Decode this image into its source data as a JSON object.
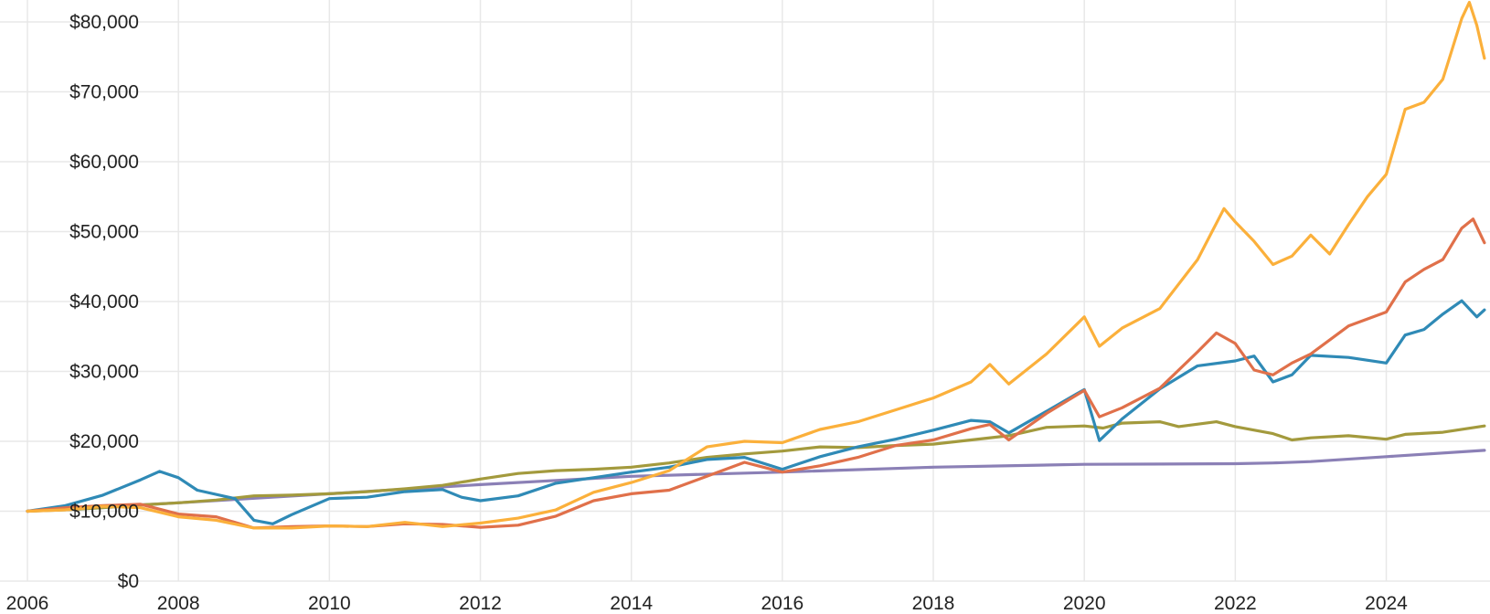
{
  "chart_data": {
    "type": "line",
    "title": "",
    "xlabel": "",
    "ylabel": "",
    "xlim": [
      2006.0,
      2025.35
    ],
    "ylim": [
      0,
      80000
    ],
    "grid": true,
    "x_ticks": [
      2006,
      2008,
      2010,
      2012,
      2014,
      2016,
      2018,
      2020,
      2022,
      2024
    ],
    "x_tick_labels": [
      "2006",
      "2008",
      "2010",
      "2012",
      "2014",
      "2016",
      "2018",
      "2020",
      "2022",
      "2024"
    ],
    "y_ticks": [
      0,
      10000,
      20000,
      30000,
      40000,
      50000,
      60000,
      70000,
      80000
    ],
    "y_tick_labels": [
      "$0",
      "$10,000",
      "$20,000",
      "$30,000",
      "$40,000",
      "$50,000",
      "$60,000",
      "$70,000",
      "$80,000"
    ],
    "series": [
      {
        "color": "#8b80b6",
        "points": [
          [
            2006.0,
            10000
          ],
          [
            2008.0,
            11200
          ],
          [
            2010.0,
            12500
          ],
          [
            2012.0,
            13800
          ],
          [
            2014.0,
            15000
          ],
          [
            2016.0,
            15600
          ],
          [
            2018.0,
            16300
          ],
          [
            2020.0,
            16700
          ],
          [
            2022.0,
            16800
          ],
          [
            2022.5,
            16900
          ],
          [
            2023.0,
            17100
          ],
          [
            2024.0,
            17800
          ],
          [
            2025.3,
            18700
          ]
        ]
      },
      {
        "color": "#a39a3d",
        "points": [
          [
            2006.0,
            10000
          ],
          [
            2006.5,
            10200
          ],
          [
            2007.0,
            10500
          ],
          [
            2007.5,
            10900
          ],
          [
            2008.0,
            11200
          ],
          [
            2008.5,
            11600
          ],
          [
            2009.0,
            12200
          ],
          [
            2009.5,
            12300
          ],
          [
            2010.0,
            12500
          ],
          [
            2010.5,
            12800
          ],
          [
            2011.0,
            13200
          ],
          [
            2011.5,
            13700
          ],
          [
            2012.0,
            14600
          ],
          [
            2012.5,
            15400
          ],
          [
            2013.0,
            15800
          ],
          [
            2013.5,
            16000
          ],
          [
            2014.0,
            16300
          ],
          [
            2014.5,
            16900
          ],
          [
            2015.0,
            17700
          ],
          [
            2015.5,
            18200
          ],
          [
            2016.0,
            18600
          ],
          [
            2016.5,
            19200
          ],
          [
            2017.0,
            19100
          ],
          [
            2017.5,
            19400
          ],
          [
            2018.0,
            19600
          ],
          [
            2018.5,
            20200
          ],
          [
            2019.0,
            20800
          ],
          [
            2019.5,
            22000
          ],
          [
            2020.0,
            22200
          ],
          [
            2020.25,
            21900
          ],
          [
            2020.5,
            22600
          ],
          [
            2021.0,
            22800
          ],
          [
            2021.25,
            22100
          ],
          [
            2021.75,
            22800
          ],
          [
            2022.0,
            22100
          ],
          [
            2022.5,
            21100
          ],
          [
            2022.75,
            20200
          ],
          [
            2023.0,
            20500
          ],
          [
            2023.5,
            20800
          ],
          [
            2024.0,
            20300
          ],
          [
            2024.25,
            21000
          ],
          [
            2024.75,
            21300
          ],
          [
            2025.3,
            22200
          ]
        ]
      },
      {
        "color": "#2f8ab6",
        "points": [
          [
            2006.0,
            10000
          ],
          [
            2006.5,
            10800
          ],
          [
            2007.0,
            12300
          ],
          [
            2007.5,
            14500
          ],
          [
            2007.75,
            15700
          ],
          [
            2008.0,
            14800
          ],
          [
            2008.25,
            13000
          ],
          [
            2008.75,
            11800
          ],
          [
            2009.0,
            8700
          ],
          [
            2009.25,
            8200
          ],
          [
            2009.5,
            9500
          ],
          [
            2010.0,
            11800
          ],
          [
            2010.5,
            12000
          ],
          [
            2011.0,
            12800
          ],
          [
            2011.5,
            13100
          ],
          [
            2011.75,
            12000
          ],
          [
            2012.0,
            11500
          ],
          [
            2012.5,
            12200
          ],
          [
            2013.0,
            14000
          ],
          [
            2013.5,
            14800
          ],
          [
            2014.0,
            15600
          ],
          [
            2014.5,
            16300
          ],
          [
            2015.0,
            17400
          ],
          [
            2015.5,
            17700
          ],
          [
            2016.0,
            16000
          ],
          [
            2016.5,
            17800
          ],
          [
            2017.0,
            19200
          ],
          [
            2017.5,
            20300
          ],
          [
            2018.0,
            21600
          ],
          [
            2018.5,
            23000
          ],
          [
            2018.75,
            22800
          ],
          [
            2019.0,
            21200
          ],
          [
            2019.5,
            24300
          ],
          [
            2019.9,
            26800
          ],
          [
            2020.0,
            27400
          ],
          [
            2020.2,
            20100
          ],
          [
            2020.5,
            23200
          ],
          [
            2021.0,
            27500
          ],
          [
            2021.5,
            30800
          ],
          [
            2022.0,
            31500
          ],
          [
            2022.25,
            32200
          ],
          [
            2022.5,
            28500
          ],
          [
            2022.75,
            29500
          ],
          [
            2023.0,
            32300
          ],
          [
            2023.5,
            32000
          ],
          [
            2024.0,
            31200
          ],
          [
            2024.25,
            35200
          ],
          [
            2024.5,
            36000
          ],
          [
            2024.75,
            38200
          ],
          [
            2025.0,
            40100
          ],
          [
            2025.2,
            37800
          ],
          [
            2025.3,
            38800
          ]
        ]
      },
      {
        "color": "#e0704a",
        "points": [
          [
            2006.0,
            10000
          ],
          [
            2006.5,
            10500
          ],
          [
            2007.0,
            10800
          ],
          [
            2007.5,
            11000
          ],
          [
            2008.0,
            9600
          ],
          [
            2008.5,
            9200
          ],
          [
            2009.0,
            7600
          ],
          [
            2009.5,
            7800
          ],
          [
            2010.0,
            7900
          ],
          [
            2010.5,
            7800
          ],
          [
            2011.0,
            8200
          ],
          [
            2011.5,
            8100
          ],
          [
            2012.0,
            7700
          ],
          [
            2012.5,
            8000
          ],
          [
            2013.0,
            9300
          ],
          [
            2013.5,
            11500
          ],
          [
            2014.0,
            12500
          ],
          [
            2014.5,
            13000
          ],
          [
            2015.0,
            15000
          ],
          [
            2015.5,
            17000
          ],
          [
            2016.0,
            15600
          ],
          [
            2016.5,
            16500
          ],
          [
            2017.0,
            17700
          ],
          [
            2017.5,
            19400
          ],
          [
            2018.0,
            20200
          ],
          [
            2018.5,
            21800
          ],
          [
            2018.75,
            22400
          ],
          [
            2019.0,
            20200
          ],
          [
            2019.5,
            24000
          ],
          [
            2020.0,
            27300
          ],
          [
            2020.2,
            23500
          ],
          [
            2020.5,
            24800
          ],
          [
            2021.0,
            27600
          ],
          [
            2021.5,
            32800
          ],
          [
            2021.75,
            35500
          ],
          [
            2022.0,
            34000
          ],
          [
            2022.25,
            30200
          ],
          [
            2022.5,
            29500
          ],
          [
            2022.75,
            31200
          ],
          [
            2023.0,
            32500
          ],
          [
            2023.5,
            36500
          ],
          [
            2024.0,
            38500
          ],
          [
            2024.25,
            42800
          ],
          [
            2024.5,
            44600
          ],
          [
            2024.75,
            46000
          ],
          [
            2025.0,
            50500
          ],
          [
            2025.15,
            51800
          ],
          [
            2025.3,
            48400
          ]
        ]
      },
      {
        "color": "#fbb03b",
        "points": [
          [
            2006.0,
            10000
          ],
          [
            2006.5,
            10200
          ],
          [
            2007.0,
            10700
          ],
          [
            2007.5,
            10500
          ],
          [
            2008.0,
            9200
          ],
          [
            2008.5,
            8700
          ],
          [
            2009.0,
            7600
          ],
          [
            2009.5,
            7600
          ],
          [
            2010.0,
            7900
          ],
          [
            2010.5,
            7800
          ],
          [
            2011.0,
            8400
          ],
          [
            2011.5,
            7800
          ],
          [
            2012.0,
            8300
          ],
          [
            2012.5,
            9000
          ],
          [
            2013.0,
            10200
          ],
          [
            2013.5,
            12700
          ],
          [
            2014.0,
            14100
          ],
          [
            2014.5,
            15800
          ],
          [
            2015.0,
            19200
          ],
          [
            2015.5,
            20000
          ],
          [
            2016.0,
            19800
          ],
          [
            2016.5,
            21700
          ],
          [
            2017.0,
            22800
          ],
          [
            2017.5,
            24500
          ],
          [
            2018.0,
            26200
          ],
          [
            2018.5,
            28500
          ],
          [
            2018.75,
            31000
          ],
          [
            2019.0,
            28200
          ],
          [
            2019.5,
            32500
          ],
          [
            2020.0,
            37800
          ],
          [
            2020.2,
            33600
          ],
          [
            2020.5,
            36200
          ],
          [
            2021.0,
            39000
          ],
          [
            2021.5,
            46000
          ],
          [
            2021.85,
            53300
          ],
          [
            2022.0,
            51400
          ],
          [
            2022.25,
            48600
          ],
          [
            2022.5,
            45300
          ],
          [
            2022.75,
            46500
          ],
          [
            2023.0,
            49500
          ],
          [
            2023.25,
            46800
          ],
          [
            2023.5,
            51000
          ],
          [
            2023.75,
            55000
          ],
          [
            2024.0,
            58200
          ],
          [
            2024.25,
            67500
          ],
          [
            2024.5,
            68500
          ],
          [
            2024.75,
            71800
          ],
          [
            2025.0,
            80500
          ],
          [
            2025.1,
            82800
          ],
          [
            2025.2,
            79500
          ],
          [
            2025.3,
            74800
          ]
        ]
      }
    ]
  }
}
